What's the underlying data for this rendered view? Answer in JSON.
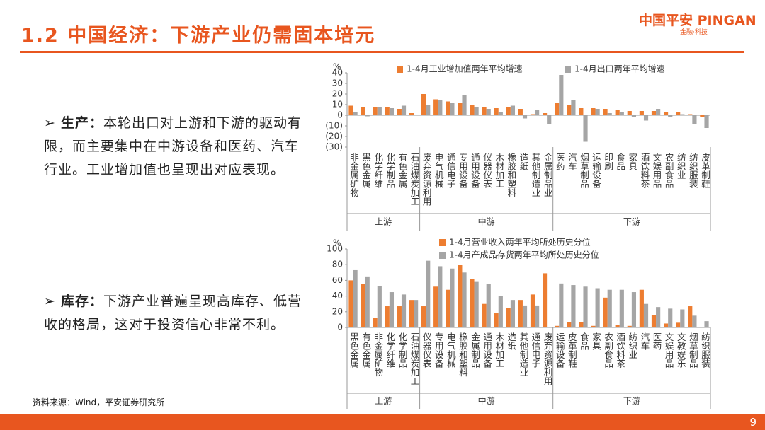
{
  "header": {
    "title": "1.2 中国经济：下游产业仍需固本培元",
    "logo": "中国平安 PINGAN",
    "logo_sub": "金融·科技"
  },
  "bullets": [
    {
      "label": "生产：",
      "text": "本轮出口对上游和下游的驱动有限，而主要集中在中游设备和医药、汽车行业。工业增加值也呈现出对应表现。"
    },
    {
      "label": "库存：",
      "text": "下游产业普遍呈现高库存、低营收的格局，这对于投资信心非常不利。"
    }
  ],
  "source": "资料来源：Wind，平安证券研究所",
  "page": "9",
  "chart_data": [
    {
      "type": "bar",
      "unit": "%",
      "ylim": [
        -30,
        40
      ],
      "yticks": [
        40,
        30,
        20,
        10,
        0,
        {
          "value": -10,
          "label": "(10)"
        },
        {
          "value": -20,
          "label": "(20)"
        },
        {
          "value": -30,
          "label": "(30)"
        }
      ],
      "groups": [
        {
          "name": "上游",
          "categories": [
            "非金属矿物",
            "黑色金属",
            "化学纤维",
            "化学制品",
            "有色金属",
            "石油煤炭加工"
          ]
        },
        {
          "name": "中游",
          "categories": [
            "废弃资源利用",
            "电气机械",
            "通信电子",
            "专用设备",
            "通用设备",
            "仪器仪表",
            "木材加工",
            "橡胶和塑料",
            "造纸",
            "其他制造业",
            "金属制品业"
          ]
        },
        {
          "name": "下游",
          "categories": [
            "医药",
            "汽车",
            "烟草制品",
            "运输设备",
            "印刷",
            "食品",
            "家具",
            "酒饮料茶",
            "文娱用品",
            "农副食品",
            "纺织业",
            "纺织服装",
            "皮革制鞋"
          ]
        }
      ],
      "series": [
        {
          "name": "1-4月工业增加值两年平均增速",
          "color": "#ed7d31",
          "values": [
            9,
            8,
            8,
            8,
            6,
            2,
            20,
            15,
            13,
            12,
            10,
            8,
            7,
            8,
            6,
            1,
            2,
            12,
            10,
            7,
            7,
            6,
            5,
            4,
            4,
            4,
            3,
            3,
            1,
            -2
          ]
        },
        {
          "name": "1-4月出口两年平均增速",
          "color": "#a5a5a5",
          "values": [
            3,
            -1,
            8,
            7,
            9,
            0,
            10,
            14,
            12,
            19,
            8,
            6,
            3,
            9,
            -3,
            5,
            -8,
            38,
            14,
            -25,
            6,
            2,
            3,
            -2,
            -5,
            6,
            -2,
            1,
            -8,
            -12
          ]
        }
      ]
    },
    {
      "type": "bar",
      "unit": "%",
      "ylim": [
        0,
        100
      ],
      "yticks": [
        0,
        20,
        40,
        60,
        80,
        100
      ],
      "groups": [
        {
          "name": "上游",
          "categories": [
            "黑色金属",
            "有色金属",
            "非金属矿物",
            "化学纤维",
            "化学制品",
            "石油煤炭加工"
          ]
        },
        {
          "name": "中游",
          "categories": [
            "仪器仪表",
            "专用设备",
            "电气机械",
            "橡胶和塑料",
            "金属制品",
            "通用设备",
            "木材加工",
            "造纸",
            "其他制造业",
            "通信电子",
            "废弃资源利用"
          ]
        },
        {
          "name": "下游",
          "categories": [
            "运输设备",
            "皮革制鞋",
            "食品",
            "家具",
            "农副食品",
            "酒饮料茶",
            "纺织业",
            "汽车",
            "医药",
            "文娱用品",
            "文教娱乐",
            "烟草制品",
            "纺织服装"
          ]
        }
      ],
      "series": [
        {
          "name": "1-4月营业收入两年平均所处历史分位",
          "color": "#ed7d31",
          "values": [
            60,
            55,
            12,
            27,
            27,
            35,
            27,
            52,
            48,
            80,
            62,
            30,
            18,
            25,
            35,
            42,
            69,
            2,
            7,
            7,
            2,
            38,
            3,
            2,
            48,
            16,
            5,
            6,
            27,
            0
          ]
        },
        {
          "name": "1-4月产成品存货两年平均所处历史分位",
          "color": "#a5a5a5",
          "values": [
            73,
            65,
            53,
            45,
            42,
            35,
            85,
            78,
            75,
            70,
            58,
            55,
            40,
            35,
            28,
            28,
            0,
            56,
            54,
            52,
            50,
            48,
            48,
            45,
            30,
            26,
            24,
            23,
            15,
            8
          ]
        }
      ]
    }
  ]
}
